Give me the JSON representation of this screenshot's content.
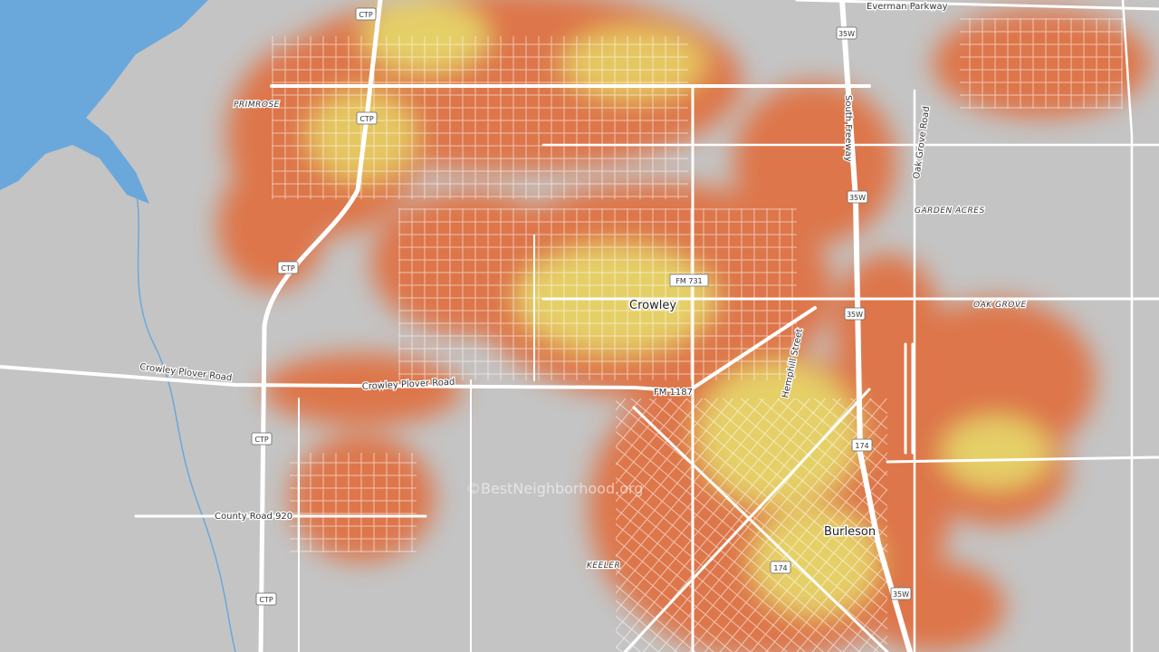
{
  "map": {
    "place_labels": [
      "PRIMROSE",
      "GARDEN ACRES",
      "OAK GROVE",
      "KEELER"
    ],
    "city_labels": [
      "Crowley",
      "Burleson"
    ],
    "road_labels": [
      "Everman Parkway",
      "South Freeway",
      "Oak Grove Road",
      "Crowley Plover Road",
      "Crowley Plover Road",
      "FM 1187",
      "Hemphill Street",
      "County Road 920",
      "FM 731"
    ],
    "shields": [
      "CTP",
      "CTP",
      "CTP",
      "CTP",
      "CTP",
      "35W",
      "35W",
      "35W",
      "35W",
      "174",
      "174"
    ],
    "watermark": "©BestNeighborhood.org"
  }
}
